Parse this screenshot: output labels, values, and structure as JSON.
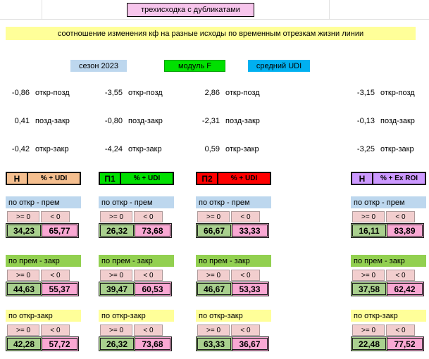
{
  "title": "трехисходка с дубликатами",
  "banner": "соотношение изменения кф на разные исходы по временным отрезкам жизни линии",
  "tags": {
    "season": "сезон 2023",
    "module": "модуль F",
    "udi": "средний UDI"
  },
  "cmp": {
    "ge": ">= 0",
    "lt": "< 0"
  },
  "sections": [
    {
      "title": "по откр - прем"
    },
    {
      "title": "по прем - закр"
    },
    {
      "title": "по откр-закр"
    }
  ],
  "columns": [
    {
      "name": "Н",
      "metric": "% + UDI",
      "deltas": [
        {
          "value": "-0,86",
          "label": "откр-позд"
        },
        {
          "value": "0,41",
          "label": "позд-закр"
        },
        {
          "value": "-0,42",
          "label": "откр-закр"
        }
      ],
      "values": [
        {
          "ge": "34,23",
          "lt": "65,77"
        },
        {
          "ge": "44,63",
          "lt": "55,37"
        },
        {
          "ge": "42,28",
          "lt": "57,72"
        }
      ]
    },
    {
      "name": "П1",
      "metric": "% + UDI",
      "deltas": [
        {
          "value": "-3,55",
          "label": "откр-позд"
        },
        {
          "value": "-0,80",
          "label": "позд-закр"
        },
        {
          "value": "-4,24",
          "label": "откр-закр"
        }
      ],
      "values": [
        {
          "ge": "26,32",
          "lt": "73,68"
        },
        {
          "ge": "39,47",
          "lt": "60,53"
        },
        {
          "ge": "26,32",
          "lt": "73,68"
        }
      ]
    },
    {
      "name": "П2",
      "metric": "% + UDI",
      "deltas": [
        {
          "value": "2,86",
          "label": "откр-позд"
        },
        {
          "value": "-2,31",
          "label": "позд-закр"
        },
        {
          "value": "0,59",
          "label": "откр-закр"
        }
      ],
      "values": [
        {
          "ge": "66,67",
          "lt": "33,33"
        },
        {
          "ge": "46,67",
          "lt": "53,33"
        },
        {
          "ge": "63,33",
          "lt": "36,67"
        }
      ]
    },
    {
      "name": "Н",
      "metric": "% + Ex ROI",
      "deltas": [
        {
          "value": "-3,15",
          "label": "откр-позд"
        },
        {
          "value": "-0,13",
          "label": "позд-закр"
        },
        {
          "value": "-3,25",
          "label": "откр-закр"
        }
      ],
      "values": [
        {
          "ge": "16,11",
          "lt": "83,89"
        },
        {
          "ge": "37,58",
          "lt": "62,42"
        },
        {
          "ge": "22,48",
          "lt": "77,52"
        }
      ]
    }
  ],
  "colors": {
    "title_bg": "#F7C5EC",
    "banner_bg": "#FFFF99",
    "tag_season": "#BDD7EE",
    "tag_module": "#00E000",
    "tag_udi": "#00B0F0",
    "header_n1": "#F5BF8F",
    "header_p1": "#00E000",
    "header_p2": "#FF0000",
    "header_n2": "#CC99FF",
    "section_open_prem": "#BDD7EE",
    "section_prem_close": "#92D050",
    "section_open_close": "#FFFF99",
    "cmp_bg": "#F2CECE",
    "value_ge": "#A9D08E",
    "value_lt": "#F9A8D3"
  }
}
